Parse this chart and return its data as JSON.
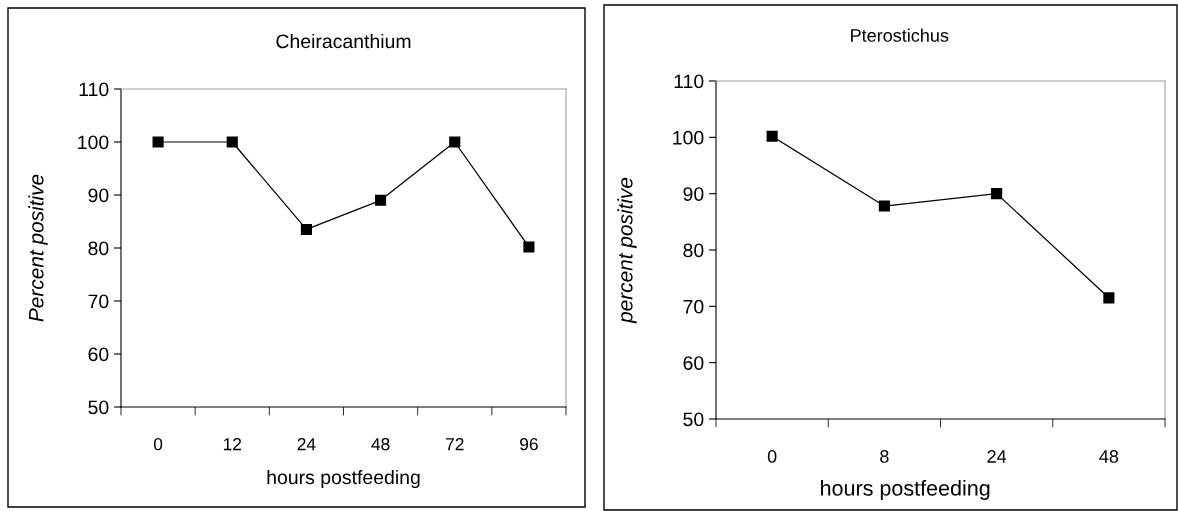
{
  "chart_data": [
    {
      "type": "line",
      "title": "Cheiracanthium",
      "xlabel": "hours postfeeding",
      "ylabel": "Percent positive",
      "categories": [
        "0",
        "12",
        "24",
        "48",
        "72",
        "96"
      ],
      "series": [
        {
          "color": "#000000",
          "values": [
            100,
            100,
            83.5,
            89,
            100,
            80.2
          ]
        }
      ],
      "ylim": [
        50,
        110
      ],
      "yticks": [
        50,
        60,
        70,
        80,
        90,
        100,
        110
      ],
      "marker": "square",
      "line_style": "solid",
      "grid": false
    },
    {
      "type": "line",
      "title": "Pterostichus",
      "xlabel": "hours postfeeding",
      "ylabel": "percent positive",
      "categories": [
        "0",
        "8",
        "24",
        "48"
      ],
      "series": [
        {
          "color": "#000000",
          "values": [
            100.2,
            87.8,
            90,
            71.5
          ]
        }
      ],
      "ylim": [
        50,
        110
      ],
      "yticks": [
        50,
        60,
        70,
        80,
        90,
        100,
        110
      ],
      "marker": "square",
      "line_style": "solid",
      "grid": false
    }
  ]
}
